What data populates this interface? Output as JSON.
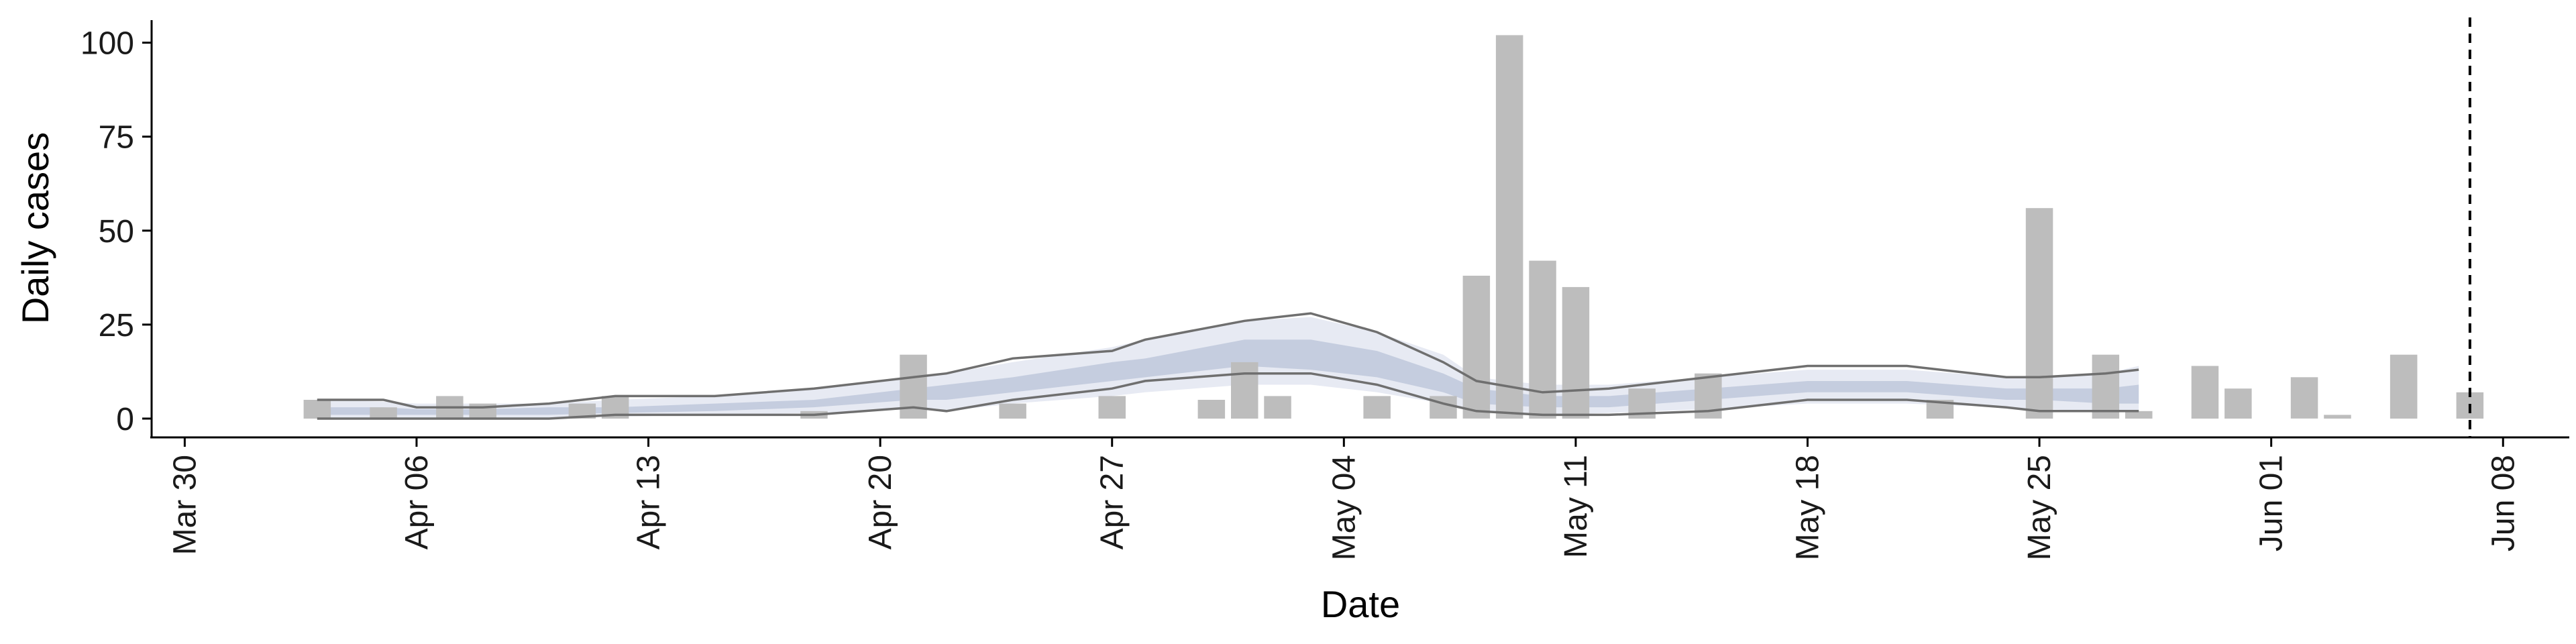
{
  "chart_data": {
    "type": "bar",
    "xlabel": "Date",
    "ylabel": "Daily cases",
    "xlim": [
      "2020-03-29",
      "2020-06-10"
    ],
    "ylim": [
      -5,
      106
    ],
    "x_ticks": [
      {
        "date": "2020-03-30",
        "label": "Mar 30"
      },
      {
        "date": "2020-04-06",
        "label": "Apr 06"
      },
      {
        "date": "2020-04-13",
        "label": "Apr 13"
      },
      {
        "date": "2020-04-20",
        "label": "Apr 20"
      },
      {
        "date": "2020-04-27",
        "label": "Apr 27"
      },
      {
        "date": "2020-05-04",
        "label": "May 04"
      },
      {
        "date": "2020-05-11",
        "label": "May 11"
      },
      {
        "date": "2020-05-18",
        "label": "May 18"
      },
      {
        "date": "2020-05-25",
        "label": "May 25"
      },
      {
        "date": "2020-06-01",
        "label": "Jun 01"
      },
      {
        "date": "2020-06-08",
        "label": "Jun 08"
      }
    ],
    "y_ticks": [
      0,
      25,
      50,
      75,
      100
    ],
    "daily_cases": [
      {
        "date": "2020-04-03",
        "value": 5
      },
      {
        "date": "2020-04-05",
        "value": 3
      },
      {
        "date": "2020-04-07",
        "value": 6
      },
      {
        "date": "2020-04-08",
        "value": 4
      },
      {
        "date": "2020-04-11",
        "value": 4
      },
      {
        "date": "2020-04-12",
        "value": 6
      },
      {
        "date": "2020-04-18",
        "value": 2
      },
      {
        "date": "2020-04-21",
        "value": 17
      },
      {
        "date": "2020-04-24",
        "value": 4
      },
      {
        "date": "2020-04-27",
        "value": 6
      },
      {
        "date": "2020-04-30",
        "value": 5
      },
      {
        "date": "2020-05-01",
        "value": 15
      },
      {
        "date": "2020-05-02",
        "value": 6
      },
      {
        "date": "2020-05-05",
        "value": 6
      },
      {
        "date": "2020-05-07",
        "value": 6
      },
      {
        "date": "2020-05-08",
        "value": 38
      },
      {
        "date": "2020-05-09",
        "value": 102
      },
      {
        "date": "2020-05-10",
        "value": 42
      },
      {
        "date": "2020-05-11",
        "value": 35
      },
      {
        "date": "2020-05-13",
        "value": 8
      },
      {
        "date": "2020-05-15",
        "value": 12
      },
      {
        "date": "2020-05-22",
        "value": 5
      },
      {
        "date": "2020-05-25",
        "value": 56
      },
      {
        "date": "2020-05-27",
        "value": 17
      },
      {
        "date": "2020-05-28",
        "value": 2
      },
      {
        "date": "2020-05-30",
        "value": 14
      },
      {
        "date": "2020-05-31",
        "value": 8
      },
      {
        "date": "2020-06-02",
        "value": 11
      },
      {
        "date": "2020-06-03",
        "value": 1
      },
      {
        "date": "2020-06-05",
        "value": 17
      },
      {
        "date": "2020-06-07",
        "value": 7
      }
    ],
    "estimate": [
      {
        "date": "2020-04-03",
        "low90": 0,
        "low50": 1,
        "high50": 3,
        "high90": 5,
        "low_line": 0,
        "high_line": 5
      },
      {
        "date": "2020-04-05",
        "low90": 0,
        "low50": 1,
        "high50": 3,
        "high90": 4.5,
        "low_line": 0,
        "high_line": 5
      },
      {
        "date": "2020-04-06",
        "low90": 0,
        "low50": 1,
        "high50": 2.5,
        "high90": 4,
        "low_line": 0,
        "high_line": 3
      },
      {
        "date": "2020-04-08",
        "low90": 0,
        "low50": 1,
        "high50": 2.5,
        "high90": 4,
        "low_line": 0,
        "high_line": 3
      },
      {
        "date": "2020-04-10",
        "low90": 0,
        "low50": 1,
        "high50": 3,
        "high90": 4,
        "low_line": 0,
        "high_line": 4
      },
      {
        "date": "2020-04-12",
        "low90": 0.5,
        "low50": 1.5,
        "high50": 3,
        "high90": 5,
        "low_line": 1,
        "high_line": 6
      },
      {
        "date": "2020-04-15",
        "low90": 1,
        "low50": 2,
        "high50": 4,
        "high90": 6,
        "low_line": 1,
        "high_line": 6
      },
      {
        "date": "2020-04-18",
        "low90": 1.5,
        "low50": 3,
        "high50": 5,
        "high90": 8,
        "low_line": 1,
        "high_line": 8
      },
      {
        "date": "2020-04-21",
        "low90": 2.5,
        "low50": 5,
        "high50": 8,
        "high90": 11,
        "low_line": 3,
        "high_line": 11
      },
      {
        "date": "2020-04-22",
        "low90": 2,
        "low50": 5,
        "high50": 9,
        "high90": 12,
        "low_line": 2,
        "high_line": 12
      },
      {
        "date": "2020-04-24",
        "low90": 4,
        "low50": 7,
        "high50": 11,
        "high90": 15,
        "low_line": 5,
        "high_line": 16
      },
      {
        "date": "2020-04-27",
        "low90": 6,
        "low50": 10,
        "high50": 15,
        "high90": 19,
        "low_line": 8,
        "high_line": 18
      },
      {
        "date": "2020-04-28",
        "low90": 7,
        "low50": 11,
        "high50": 16,
        "high90": 21,
        "low_line": 10,
        "high_line": 21
      },
      {
        "date": "2020-05-01",
        "low90": 9,
        "low50": 14,
        "high50": 21,
        "high90": 26,
        "low_line": 12,
        "high_line": 26
      },
      {
        "date": "2020-05-03",
        "low90": 9,
        "low50": 13,
        "high50": 21,
        "high90": 27,
        "low_line": 12,
        "high_line": 28
      },
      {
        "date": "2020-05-05",
        "low90": 7,
        "low50": 11,
        "high50": 18,
        "high90": 23,
        "low_line": 9,
        "high_line": 23
      },
      {
        "date": "2020-05-07",
        "low90": 4,
        "low50": 7,
        "high50": 12,
        "high90": 17,
        "low_line": 4,
        "high_line": 15
      },
      {
        "date": "2020-05-08",
        "low90": 2,
        "low50": 4,
        "high50": 8,
        "high90": 11,
        "low_line": 2,
        "high_line": 10
      },
      {
        "date": "2020-05-10",
        "low90": 1,
        "low50": 3,
        "high50": 6,
        "high90": 9,
        "low_line": 1,
        "high_line": 7
      },
      {
        "date": "2020-05-12",
        "low90": 1.5,
        "low50": 3,
        "high50": 6,
        "high90": 9,
        "low_line": 1,
        "high_line": 8
      },
      {
        "date": "2020-05-15",
        "low90": 2.5,
        "low50": 5,
        "high50": 8,
        "high90": 11,
        "low_line": 2,
        "high_line": 11
      },
      {
        "date": "2020-05-18",
        "low90": 4,
        "low50": 7,
        "high50": 10,
        "high90": 13,
        "low_line": 5,
        "high_line": 14
      },
      {
        "date": "2020-05-21",
        "low90": 4,
        "low50": 7,
        "high50": 10,
        "high90": 13,
        "low_line": 5,
        "high_line": 14
      },
      {
        "date": "2020-05-24",
        "low90": 3,
        "low50": 5,
        "high50": 8,
        "high90": 11,
        "low_line": 3,
        "high_line": 11
      },
      {
        "date": "2020-05-25",
        "low90": 2.5,
        "low50": 5,
        "high50": 8,
        "high90": 11,
        "low_line": 2,
        "high_line": 11
      },
      {
        "date": "2020-05-27",
        "low90": 2,
        "low50": 4,
        "high50": 8,
        "high90": 12,
        "low_line": 2,
        "high_line": 12
      },
      {
        "date": "2020-05-28",
        "low90": 1.5,
        "low50": 4,
        "high50": 9,
        "high90": 14,
        "low_line": 2,
        "high_line": 13
      }
    ],
    "vertical_line": {
      "date": "2020-06-07"
    },
    "grid": false,
    "legend": "none"
  }
}
